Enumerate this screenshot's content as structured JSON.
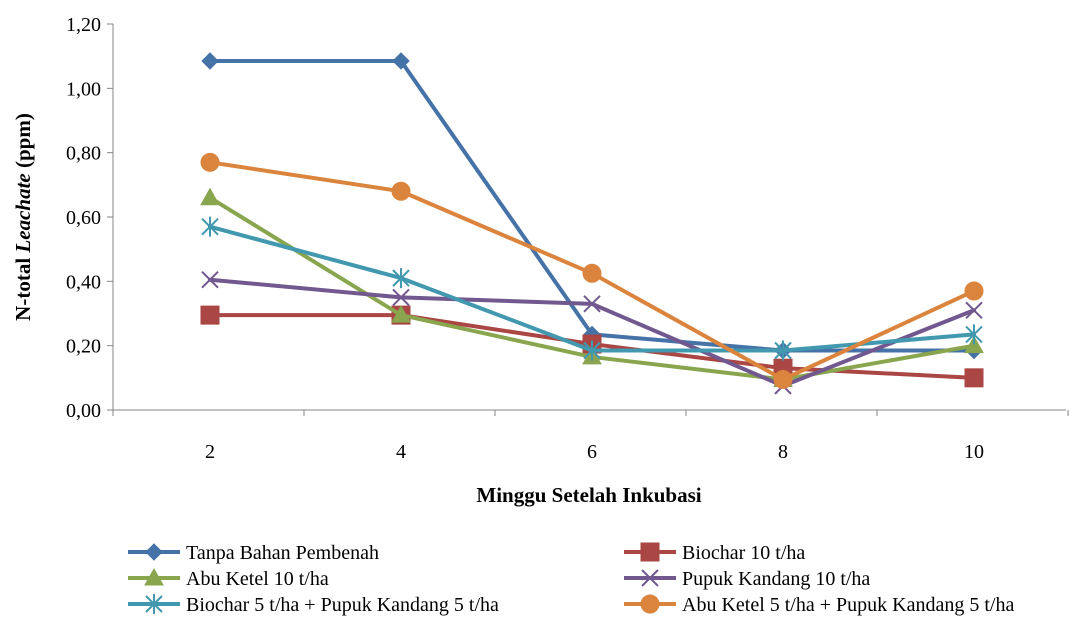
{
  "chart_data": {
    "type": "line",
    "x": [
      2,
      4,
      6,
      8,
      10
    ],
    "xlabel": "Minggu Setelah Inkubasi",
    "ylabel_parts": [
      "N-total ",
      "Leachate",
      " (ppm)"
    ],
    "ylim": [
      0,
      1.2
    ],
    "yticks": [
      "0,00",
      "0,20",
      "0,40",
      "0,60",
      "0,80",
      "1,00",
      "1,20"
    ],
    "xticks": [
      "2",
      "4",
      "6",
      "8",
      "10"
    ],
    "grid": false,
    "legend_placement": "bottom",
    "series": [
      {
        "name": "Tanpa Bahan Pembenah",
        "color": "#4572A7",
        "marker": "diamond",
        "values": [
          1.085,
          1.085,
          0.235,
          0.185,
          0.185
        ]
      },
      {
        "name": "Biochar 10 t/ha",
        "color": "#AA4643",
        "marker": "square",
        "values": [
          0.295,
          0.295,
          0.205,
          0.13,
          0.1
        ]
      },
      {
        "name": "Abu Ketel 10 t/ha",
        "color": "#89A54E",
        "marker": "triangle",
        "values": [
          0.66,
          0.295,
          0.165,
          0.095,
          0.2
        ]
      },
      {
        "name": "Pupuk Kandang 10 t/ha",
        "color": "#71588F",
        "marker": "x",
        "values": [
          0.405,
          0.35,
          0.33,
          0.075,
          0.31
        ]
      },
      {
        "name": "Biochar 5 t/ha + Pupuk Kandang 5 t/ha",
        "color": "#4198AF",
        "marker": "star",
        "values": [
          0.57,
          0.41,
          0.185,
          0.185,
          0.235
        ]
      },
      {
        "name": "Abu Ketel 5 t/ha + Pupuk Kandang 5 t/ha",
        "color": "#DB843D",
        "marker": "circle",
        "values": [
          0.77,
          0.68,
          0.425,
          0.095,
          0.37
        ]
      }
    ]
  }
}
